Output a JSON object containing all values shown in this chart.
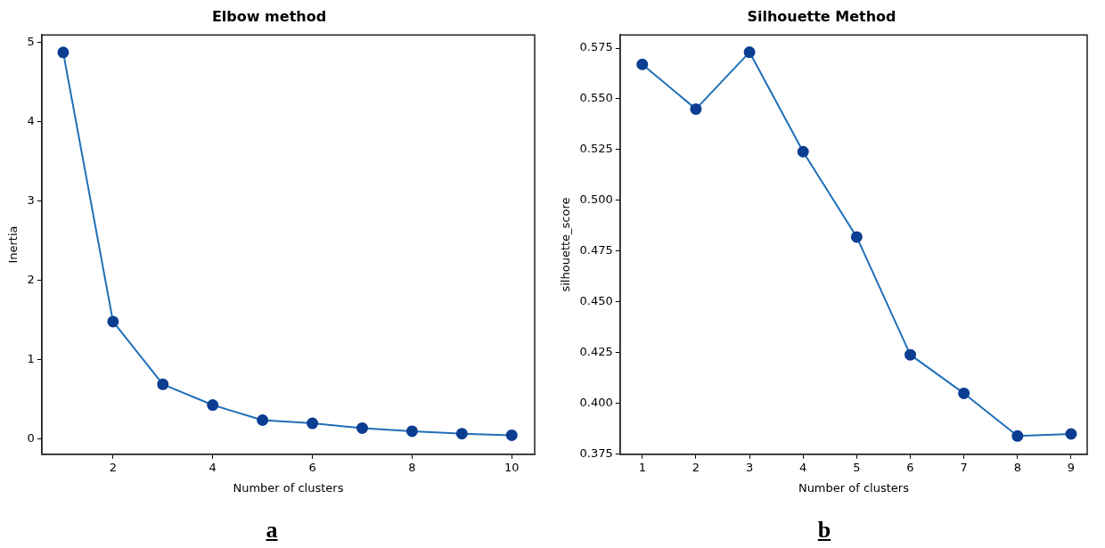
{
  "chart_data": [
    {
      "type": "line",
      "title": "Elbow method",
      "xlabel": "Number of clusters",
      "ylabel": "Inertia",
      "x": [
        1,
        2,
        3,
        4,
        5,
        6,
        7,
        8,
        9,
        10
      ],
      "series": [
        {
          "color": "#1f6fb8",
          "values": [
            4.87,
            1.48,
            0.69,
            0.43,
            0.24,
            0.2,
            0.14,
            0.1,
            0.07,
            0.05
          ]
        }
      ],
      "xlim": [
        0.57,
        10.46
      ],
      "xticks": [
        2,
        4,
        6,
        8,
        10
      ],
      "ylim": [
        -0.19,
        5.09
      ],
      "yticks": [
        0,
        1,
        2,
        3,
        4,
        5
      ],
      "marker": "circle",
      "line_style": "solid",
      "grid": false,
      "legend": false,
      "annotations": [
        "a"
      ]
    },
    {
      "type": "line",
      "title": "Silhouette Method",
      "xlabel": "Number of clusters",
      "ylabel": "silhouette_score",
      "x": [
        1,
        2,
        3,
        4,
        5,
        6,
        7,
        8,
        9
      ],
      "series": [
        {
          "color": "#1f6fb8",
          "values": [
            0.567,
            0.545,
            0.573,
            0.524,
            0.482,
            0.424,
            0.405,
            0.384,
            0.385
          ]
        }
      ],
      "xlim": [
        0.585,
        9.3
      ],
      "xticks": [
        1,
        2,
        3,
        4,
        5,
        6,
        7,
        8,
        9
      ],
      "ylim": [
        0.375,
        0.5815
      ],
      "yticks": [
        0.375,
        {
          "value": 0.4,
          "label": "0.400"
        },
        0.425,
        {
          "value": 0.45,
          "label": "0.450"
        },
        0.475,
        {
          "value": 0.5,
          "label": "0.500"
        },
        0.525,
        {
          "value": 0.55,
          "label": "0.550"
        },
        0.575
      ],
      "marker": "circle",
      "line_style": "solid",
      "grid": false,
      "legend": false,
      "annotations": [
        "b"
      ]
    }
  ]
}
